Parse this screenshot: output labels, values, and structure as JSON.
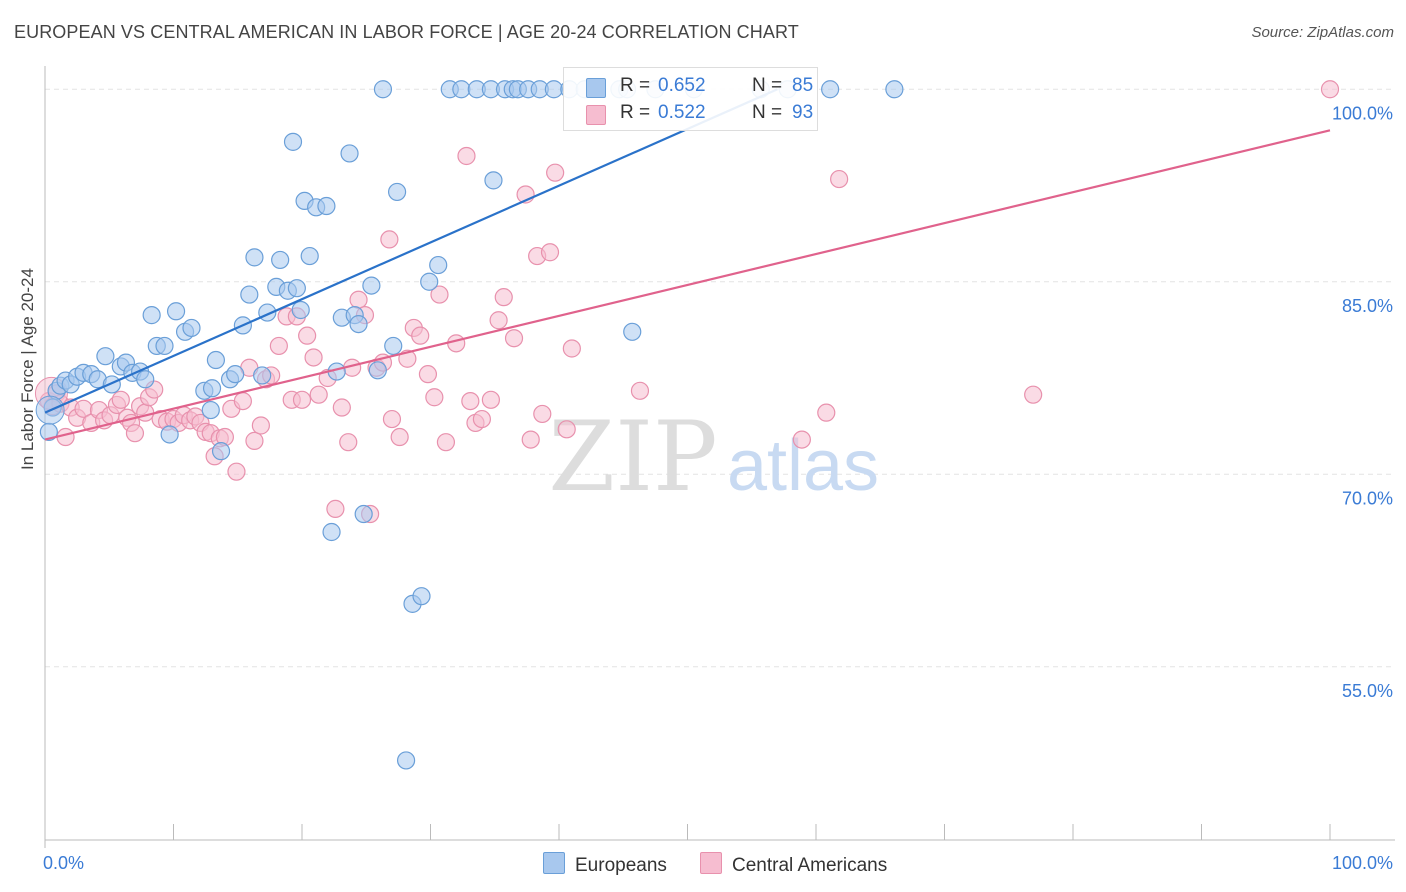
{
  "title": "EUROPEAN VS CENTRAL AMERICAN IN LABOR FORCE | AGE 20-24 CORRELATION CHART",
  "source": "Source: ZipAtlas.com",
  "watermark": {
    "zip": "ZIP",
    "atlas": "atlas"
  },
  "colors": {
    "blue_fill": "#a8c8ee",
    "blue_stroke": "#6a9fd8",
    "blue_line": "#2a72c9",
    "pink_fill": "#f6bdd0",
    "pink_stroke": "#e891ad",
    "pink_line": "#e0628c",
    "tick_label": "#3a7bd5",
    "grid": "#e3e3e3"
  },
  "legend": {
    "rows": [
      {
        "r_label": "R = ",
        "r_value": "0.652",
        "n_label": "N = ",
        "n_value": "85"
      },
      {
        "r_label": "R = ",
        "r_value": "0.522",
        "n_label": "N = ",
        "n_value": "93"
      }
    ]
  },
  "chart_data": {
    "type": "scatter",
    "title": "EUROPEAN VS CENTRAL AMERICAN IN LABOR FORCE | AGE 20-24 CORRELATION CHART",
    "xlabel": "",
    "ylabel": "In Labor Force | Age 20-24",
    "xlim": [
      0,
      100
    ],
    "ylim": [
      41.5,
      101.5
    ],
    "x_tick_labels": [
      "0.0%",
      "100.0%"
    ],
    "y_ticks": [
      100,
      85,
      70,
      55
    ],
    "y_tick_labels": [
      "100.0%",
      "85.0%",
      "70.0%",
      "55.0%"
    ],
    "grid": true,
    "legend_position": "top-center",
    "series": [
      {
        "name": "Europeans",
        "r": 0.652,
        "n": 85,
        "trend": {
          "x0": 0,
          "y0": 74.8,
          "x1": 57,
          "y1": 100
        },
        "points": [
          [
            0.3,
            73.3
          ],
          [
            0.6,
            75.2
          ],
          [
            0.9,
            76.5
          ],
          [
            1.2,
            76.9
          ],
          [
            1.6,
            77.3
          ],
          [
            2.0,
            77.0
          ],
          [
            2.5,
            77.6
          ],
          [
            3.0,
            77.9
          ],
          [
            3.6,
            77.8
          ],
          [
            4.1,
            77.4
          ],
          [
            4.7,
            79.2
          ],
          [
            5.2,
            77.0
          ],
          [
            5.9,
            78.4
          ],
          [
            6.3,
            78.7
          ],
          [
            6.8,
            77.9
          ],
          [
            7.4,
            78.0
          ],
          [
            7.8,
            77.4
          ],
          [
            8.3,
            82.4
          ],
          [
            8.7,
            80.0
          ],
          [
            9.3,
            80.0
          ],
          [
            9.7,
            73.1
          ],
          [
            10.2,
            82.7
          ],
          [
            10.9,
            81.1
          ],
          [
            11.4,
            81.4
          ],
          [
            12.4,
            76.5
          ],
          [
            12.9,
            75.0
          ],
          [
            13.0,
            76.7
          ],
          [
            13.3,
            78.9
          ],
          [
            13.7,
            71.8
          ],
          [
            14.4,
            77.4
          ],
          [
            14.8,
            77.8
          ],
          [
            15.4,
            81.6
          ],
          [
            15.9,
            84.0
          ],
          [
            16.3,
            86.9
          ],
          [
            16.9,
            77.7
          ],
          [
            17.3,
            82.6
          ],
          [
            18.0,
            84.6
          ],
          [
            18.3,
            86.7
          ],
          [
            18.9,
            84.3
          ],
          [
            19.3,
            95.9
          ],
          [
            19.6,
            84.5
          ],
          [
            19.9,
            82.8
          ],
          [
            20.2,
            91.3
          ],
          [
            20.6,
            87.0
          ],
          [
            21.1,
            90.8
          ],
          [
            21.9,
            90.9
          ],
          [
            22.3,
            65.5
          ],
          [
            22.7,
            78.0
          ],
          [
            23.1,
            82.2
          ],
          [
            23.7,
            95.0
          ],
          [
            24.1,
            82.4
          ],
          [
            24.4,
            81.7
          ],
          [
            24.8,
            66.9
          ],
          [
            25.4,
            84.7
          ],
          [
            25.9,
            78.1
          ],
          [
            26.3,
            100
          ],
          [
            27.1,
            80.0
          ],
          [
            27.4,
            92.0
          ],
          [
            28.1,
            47.7
          ],
          [
            28.6,
            59.9
          ],
          [
            29.3,
            60.5
          ],
          [
            29.9,
            85.0
          ],
          [
            30.6,
            86.3
          ],
          [
            31.5,
            100
          ],
          [
            32.4,
            100
          ],
          [
            33.6,
            100
          ],
          [
            34.7,
            100
          ],
          [
            34.9,
            92.9
          ],
          [
            35.8,
            100
          ],
          [
            36.4,
            100
          ],
          [
            36.8,
            100
          ],
          [
            37.6,
            100
          ],
          [
            38.5,
            100
          ],
          [
            39.6,
            100
          ],
          [
            40.8,
            100
          ],
          [
            42.0,
            100
          ],
          [
            44.7,
            100
          ],
          [
            45.3,
            100
          ],
          [
            45.7,
            81.1
          ],
          [
            47.5,
            100
          ],
          [
            50.5,
            100
          ],
          [
            55.7,
            100
          ],
          [
            57.8,
            100
          ],
          [
            61.1,
            100
          ],
          [
            66.1,
            100
          ]
        ]
      },
      {
        "name": "Central Americans",
        "r": 0.522,
        "n": 93,
        "trend": {
          "x0": 0,
          "y0": 72.7,
          "x1": 100,
          "y1": 96.8
        },
        "points": [
          [
            0.3,
            75.7
          ],
          [
            0.6,
            75.3
          ],
          [
            0.9,
            76.3
          ],
          [
            1.2,
            75.5
          ],
          [
            1.6,
            72.9
          ],
          [
            2.0,
            75.2
          ],
          [
            2.5,
            74.4
          ],
          [
            3.0,
            75.1
          ],
          [
            3.6,
            74.0
          ],
          [
            4.2,
            75.0
          ],
          [
            4.6,
            74.2
          ],
          [
            5.1,
            74.6
          ],
          [
            5.6,
            75.4
          ],
          [
            5.9,
            75.8
          ],
          [
            6.4,
            74.4
          ],
          [
            6.7,
            74.0
          ],
          [
            7.0,
            73.2
          ],
          [
            7.4,
            75.3
          ],
          [
            7.8,
            74.8
          ],
          [
            8.1,
            76.0
          ],
          [
            8.5,
            76.6
          ],
          [
            9.0,
            74.3
          ],
          [
            9.5,
            74.1
          ],
          [
            10.0,
            74.3
          ],
          [
            10.4,
            74.0
          ],
          [
            10.8,
            74.6
          ],
          [
            11.3,
            74.2
          ],
          [
            11.7,
            74.5
          ],
          [
            12.1,
            74.0
          ],
          [
            12.5,
            73.3
          ],
          [
            12.9,
            73.2
          ],
          [
            13.2,
            71.4
          ],
          [
            13.6,
            72.8
          ],
          [
            14.0,
            72.9
          ],
          [
            14.5,
            75.1
          ],
          [
            14.9,
            70.2
          ],
          [
            15.4,
            75.7
          ],
          [
            15.9,
            78.3
          ],
          [
            16.3,
            72.6
          ],
          [
            16.8,
            73.8
          ],
          [
            17.2,
            77.4
          ],
          [
            17.6,
            77.7
          ],
          [
            18.2,
            80.0
          ],
          [
            18.8,
            82.3
          ],
          [
            19.2,
            75.8
          ],
          [
            19.6,
            82.3
          ],
          [
            20.0,
            75.8
          ],
          [
            20.4,
            80.8
          ],
          [
            20.9,
            79.1
          ],
          [
            21.3,
            76.2
          ],
          [
            22.0,
            77.5
          ],
          [
            22.6,
            67.3
          ],
          [
            23.1,
            75.2
          ],
          [
            23.6,
            72.5
          ],
          [
            23.9,
            78.3
          ],
          [
            24.4,
            83.6
          ],
          [
            24.9,
            82.4
          ],
          [
            25.3,
            66.9
          ],
          [
            25.8,
            78.3
          ],
          [
            26.3,
            78.7
          ],
          [
            26.8,
            88.3
          ],
          [
            27.0,
            74.3
          ],
          [
            27.6,
            72.9
          ],
          [
            28.2,
            79.0
          ],
          [
            28.7,
            81.4
          ],
          [
            29.2,
            80.8
          ],
          [
            29.8,
            77.8
          ],
          [
            30.3,
            76.0
          ],
          [
            30.7,
            84.0
          ],
          [
            31.2,
            72.5
          ],
          [
            32.0,
            80.2
          ],
          [
            32.8,
            94.8
          ],
          [
            33.1,
            75.7
          ],
          [
            33.5,
            74.0
          ],
          [
            34.0,
            74.3
          ],
          [
            34.7,
            75.8
          ],
          [
            35.3,
            82.0
          ],
          [
            35.7,
            83.8
          ],
          [
            36.5,
            80.6
          ],
          [
            37.4,
            91.8
          ],
          [
            37.8,
            72.7
          ],
          [
            38.3,
            87.0
          ],
          [
            38.7,
            74.7
          ],
          [
            39.3,
            87.3
          ],
          [
            39.7,
            93.5
          ],
          [
            40.6,
            73.5
          ],
          [
            41.0,
            79.8
          ],
          [
            46.3,
            76.5
          ],
          [
            58.9,
            72.7
          ],
          [
            60.8,
            74.8
          ],
          [
            61.8,
            93.0
          ],
          [
            76.9,
            76.2
          ],
          [
            100.0,
            100
          ]
        ]
      }
    ]
  }
}
